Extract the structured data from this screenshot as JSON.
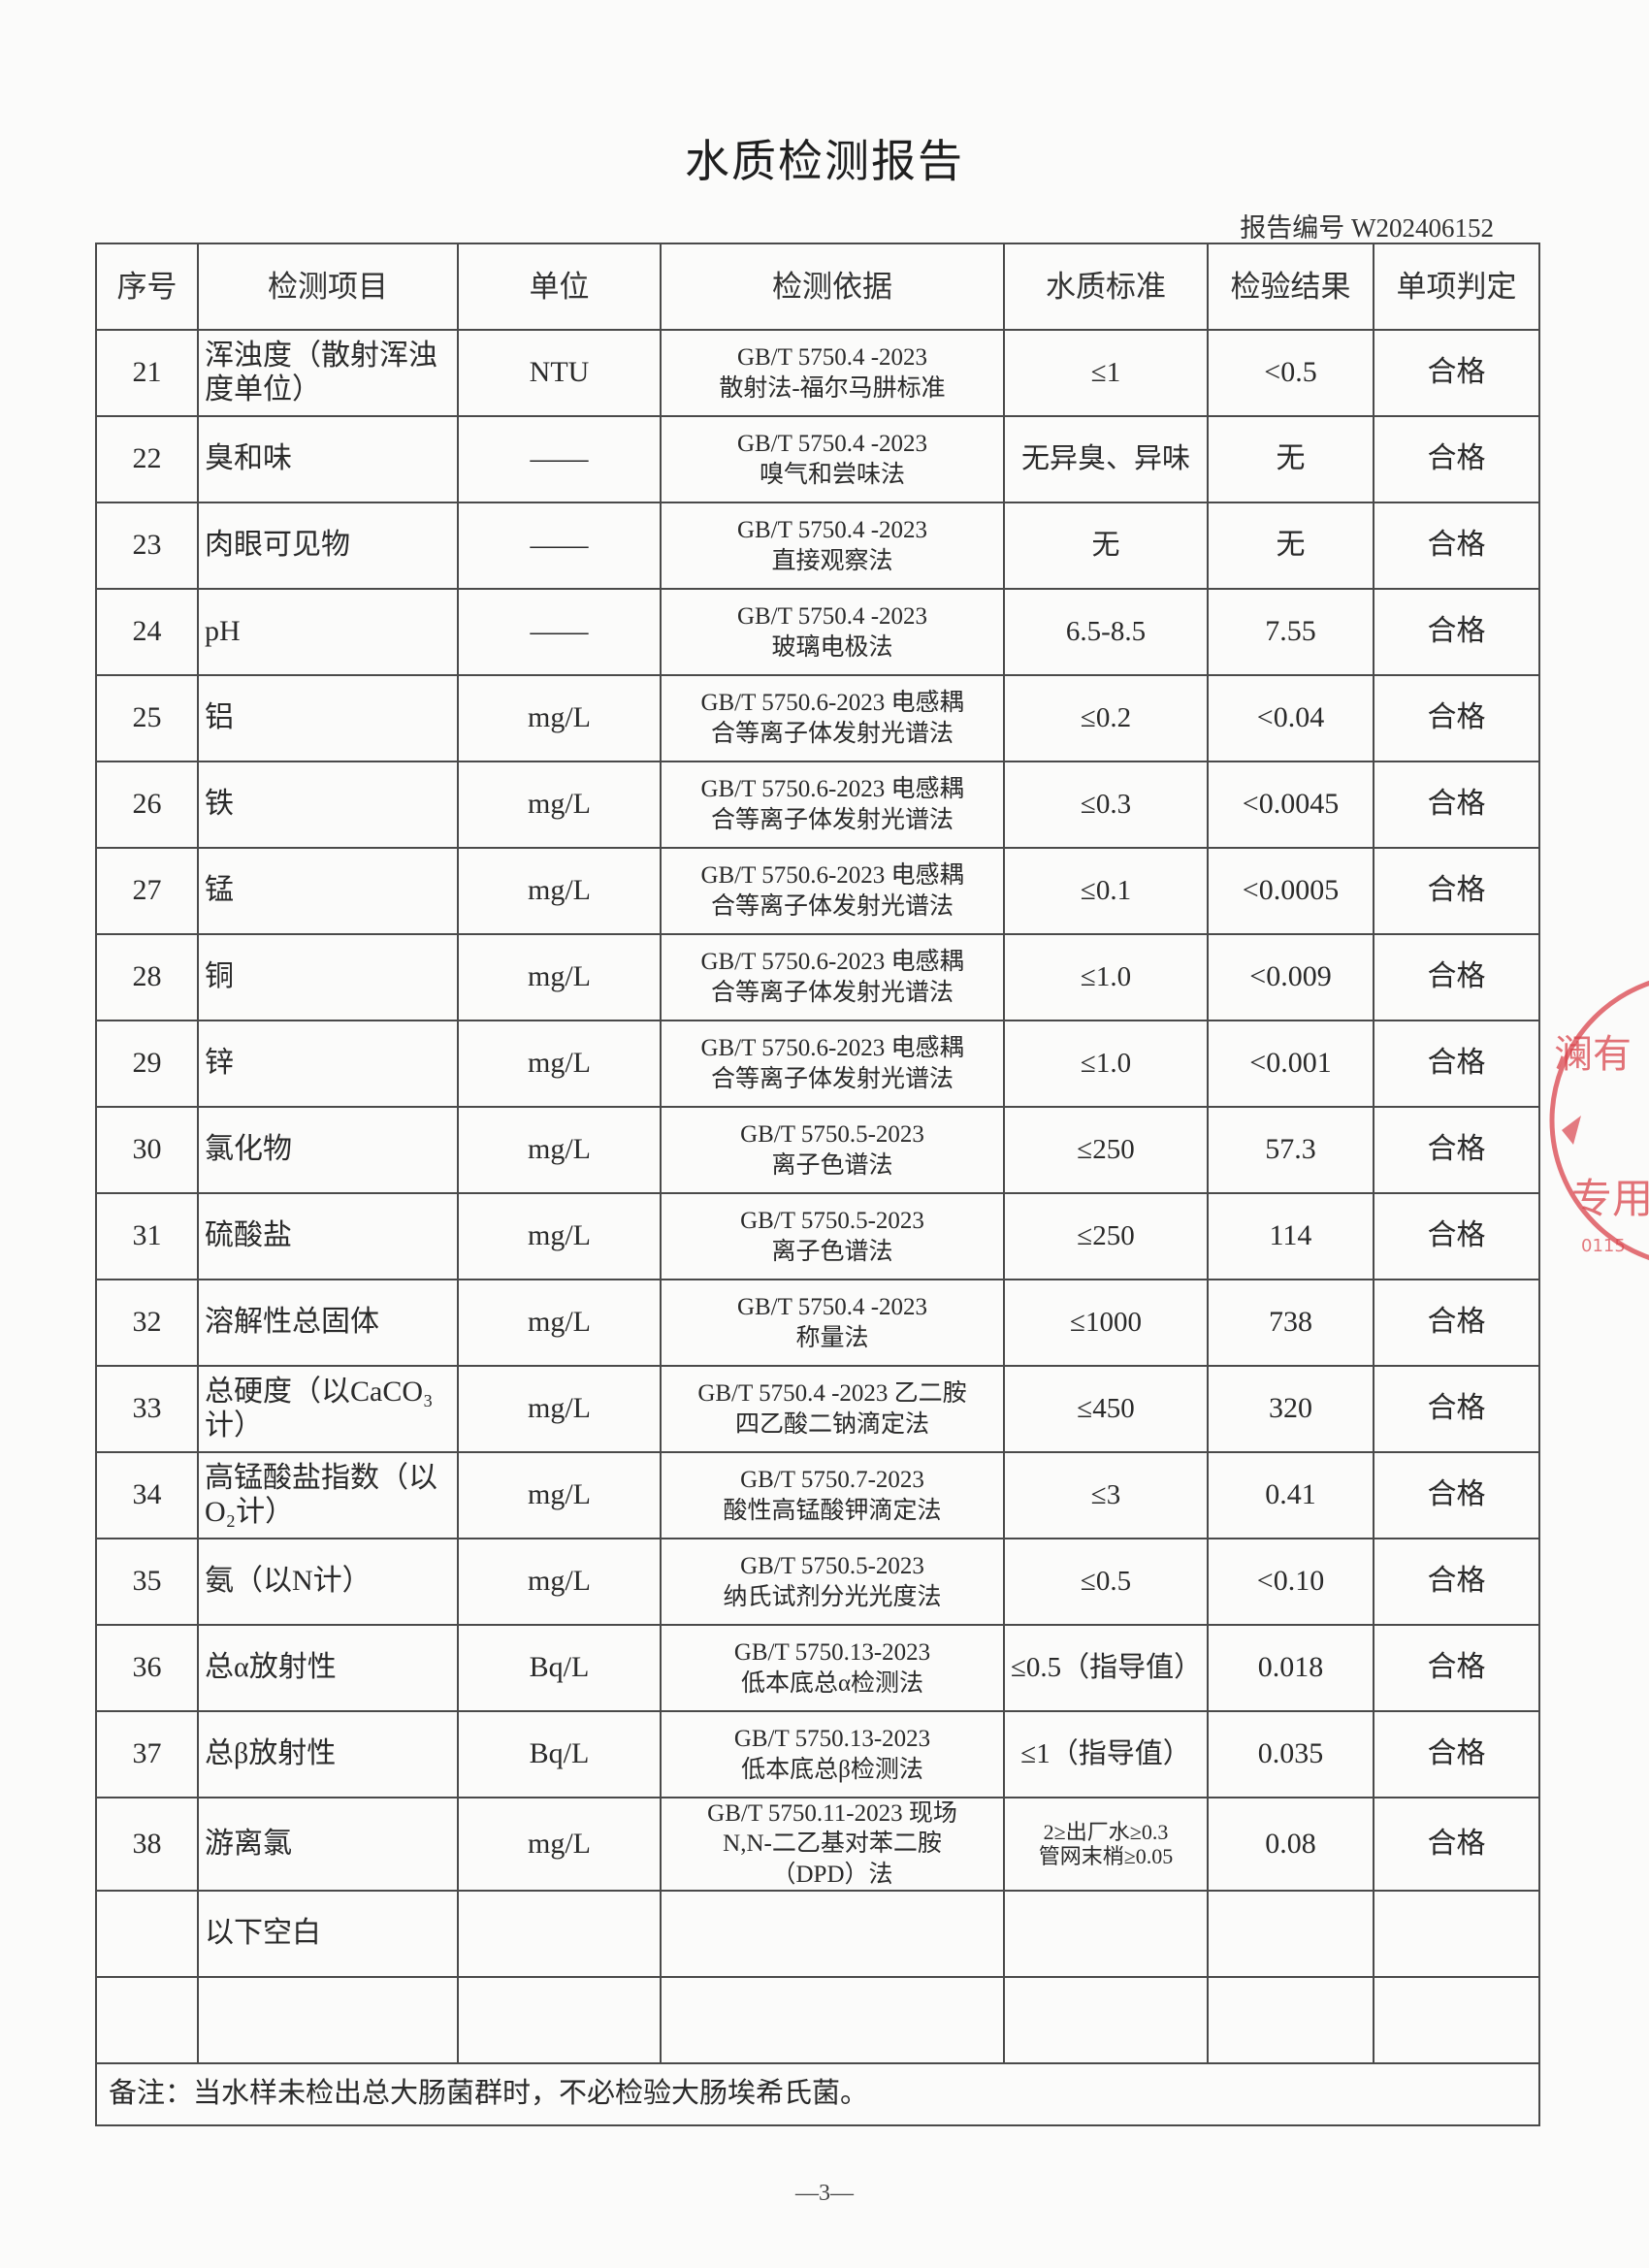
{
  "title": "水质检测报告",
  "report_no": "报告编号 W202406152",
  "headers": [
    "序号",
    "检测项目",
    "单位",
    "检测依据",
    "水质标准",
    "检验结果",
    "单项判定"
  ],
  "rows": [
    {
      "no": "21",
      "item": "浑浊度（散射浑浊度单位）",
      "unit": "NTU",
      "method": "GB/T 5750.4 -2023\n散射法-福尔马肼标准",
      "standard": "≤1",
      "result": "<0.5",
      "verdict": "合格"
    },
    {
      "no": "22",
      "item": "臭和味",
      "unit": "——",
      "method": "GB/T 5750.4 -2023\n嗅气和尝味法",
      "standard": "无异臭、异味",
      "result": "无",
      "verdict": "合格"
    },
    {
      "no": "23",
      "item": "肉眼可见物",
      "unit": "——",
      "method": "GB/T 5750.4 -2023\n直接观察法",
      "standard": "无",
      "result": "无",
      "verdict": "合格"
    },
    {
      "no": "24",
      "item": "pH",
      "unit": "——",
      "method": "GB/T 5750.4 -2023\n玻璃电极法",
      "standard": "6.5-8.5",
      "result": "7.55",
      "verdict": "合格"
    },
    {
      "no": "25",
      "item": "铝",
      "unit": "mg/L",
      "method": "GB/T 5750.6-2023 电感耦\n合等离子体发射光谱法",
      "standard": "≤0.2",
      "result": "<0.04",
      "verdict": "合格"
    },
    {
      "no": "26",
      "item": "铁",
      "unit": "mg/L",
      "method": "GB/T 5750.6-2023 电感耦\n合等离子体发射光谱法",
      "standard": "≤0.3",
      "result": "<0.0045",
      "verdict": "合格"
    },
    {
      "no": "27",
      "item": "锰",
      "unit": "mg/L",
      "method": "GB/T 5750.6-2023 电感耦\n合等离子体发射光谱法",
      "standard": "≤0.1",
      "result": "<0.0005",
      "verdict": "合格"
    },
    {
      "no": "28",
      "item": "铜",
      "unit": "mg/L",
      "method": "GB/T 5750.6-2023 电感耦\n合等离子体发射光谱法",
      "standard": "≤1.0",
      "result": "<0.009",
      "verdict": "合格"
    },
    {
      "no": "29",
      "item": "锌",
      "unit": "mg/L",
      "method": "GB/T 5750.6-2023 电感耦\n合等离子体发射光谱法",
      "standard": "≤1.0",
      "result": "<0.001",
      "verdict": "合格"
    },
    {
      "no": "30",
      "item": "氯化物",
      "unit": "mg/L",
      "method": "GB/T 5750.5-2023\n离子色谱法",
      "standard": "≤250",
      "result": "57.3",
      "verdict": "合格"
    },
    {
      "no": "31",
      "item": "硫酸盐",
      "unit": "mg/L",
      "method": "GB/T 5750.5-2023\n离子色谱法",
      "standard": "≤250",
      "result": "114",
      "verdict": "合格"
    },
    {
      "no": "32",
      "item": "溶解性总固体",
      "unit": "mg/L",
      "method": "GB/T 5750.4 -2023\n称量法",
      "standard": "≤1000",
      "result": "738",
      "verdict": "合格"
    },
    {
      "no": "33",
      "item": "总硬度（以CaCO₃计）",
      "unit": "mg/L",
      "method": "GB/T 5750.4 -2023 乙二胺\n四乙酸二钠滴定法",
      "standard": "≤450",
      "result": "320",
      "verdict": "合格"
    },
    {
      "no": "34",
      "item": "高锰酸盐指数（以O₂计）",
      "unit": "mg/L",
      "method": "GB/T 5750.7-2023\n酸性高锰酸钾滴定法",
      "standard": "≤3",
      "result": "0.41",
      "verdict": "合格"
    },
    {
      "no": "35",
      "item": "氨（以N计）",
      "unit": "mg/L",
      "method": "GB/T 5750.5-2023\n纳氏试剂分光光度法",
      "standard": "≤0.5",
      "result": "<0.10",
      "verdict": "合格"
    },
    {
      "no": "36",
      "item": "总α放射性",
      "unit": "Bq/L",
      "method": "GB/T 5750.13-2023\n低本底总α检测法",
      "standard": "≤0.5（指导值）",
      "result": "0.018",
      "verdict": "合格"
    },
    {
      "no": "37",
      "item": "总β放射性",
      "unit": "Bq/L",
      "method": "GB/T 5750.13-2023\n低本底总β检测法",
      "standard": "≤1（指导值）",
      "result": "0.035",
      "verdict": "合格"
    },
    {
      "no": "38",
      "item": "游离氯",
      "unit": "mg/L",
      "method": "GB/T 5750.11-2023 现场\nN,N-二乙基对苯二胺\n（DPD）法",
      "standard": "2≥出厂水≥0.3\n管网末梢≥0.05",
      "result": "0.08",
      "verdict": "合格"
    },
    {
      "no": "",
      "item": "以下空白",
      "unit": "",
      "method": "",
      "standard": "",
      "result": "",
      "verdict": ""
    },
    {
      "no": "",
      "item": "",
      "unit": "",
      "method": "",
      "standard": "",
      "result": "",
      "verdict": ""
    }
  ],
  "note": "备注：当水样未检出总大肠菌群时，不必检验大肠埃希氏菌。",
  "page_number": "—3—",
  "stamp": {
    "text": "测有限公司 专用章",
    "color": "#d9434b"
  }
}
